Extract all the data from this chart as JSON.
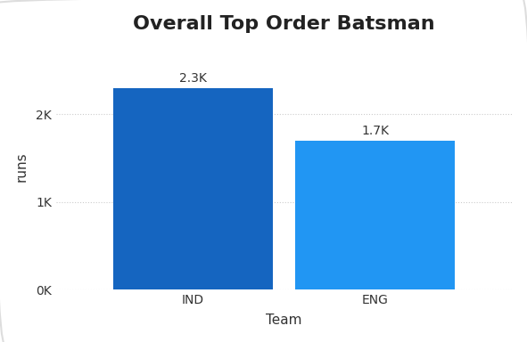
{
  "title": "Overall Top Order Batsman",
  "categories": [
    "IND",
    "ENG"
  ],
  "values": [
    2300,
    1700
  ],
  "bar_colors": [
    "#1565C0",
    "#2196F3"
  ],
  "bar_labels": [
    "2.3K",
    "1.7K"
  ],
  "xlabel": "Team",
  "ylabel": "runs",
  "ylim": [
    0,
    2800
  ],
  "yticks": [
    0,
    1000,
    2000
  ],
  "ytick_labels": [
    "0K",
    "1K",
    "2K"
  ],
  "background_color": "#ffffff",
  "title_fontsize": 16,
  "label_fontsize": 11,
  "tick_fontsize": 10,
  "bar_label_fontsize": 10,
  "grid_color": "#cccccc",
  "bar_width": 0.35
}
